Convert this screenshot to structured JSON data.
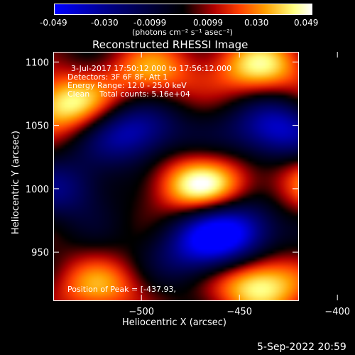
{
  "colorbar": {
    "tick_labels": [
      "-0.049",
      "-0.030",
      "-0.0099",
      "0.0099",
      "0.030",
      "0.049"
    ],
    "unit_label": "(photons cm⁻² s⁻¹ asec⁻²)",
    "colors": [
      "#0000ff",
      "#000080",
      "#000000",
      "#b00000",
      "#ff4000",
      "#ffa000",
      "#ffff80",
      "#ffffff"
    ]
  },
  "chart_data": {
    "type": "heatmap",
    "title": "Reconstructed RHESSI Image",
    "xlabel": "Heliocentric X (arcsec)",
    "ylabel": "Heliocentric Y (arcsec)",
    "xlim": [
      -545,
      -420
    ],
    "ylim": [
      912,
      1108
    ],
    "x_ticks": [
      -500,
      -450,
      -400
    ],
    "x_tick_labels": [
      "−500",
      "−450",
      "−400"
    ],
    "y_ticks": [
      950,
      1000,
      1050,
      1100
    ],
    "y_tick_labels": [
      "950",
      "1000",
      "1050",
      "1100"
    ],
    "value_range": [
      -0.049,
      0.049
    ],
    "sources": [
      {
        "x": -470,
        "y": 1002,
        "value": 0.049
      },
      {
        "x": -538,
        "y": 1066,
        "value": 0.045
      },
      {
        "x": -440,
        "y": 925,
        "value": 0.049
      },
      {
        "x": -522,
        "y": 922,
        "value": 0.03
      },
      {
        "x": -440,
        "y": 1096,
        "value": 0.04
      },
      {
        "x": -495,
        "y": 1092,
        "value": 0.03
      },
      {
        "x": -410,
        "y": 1005,
        "value": 0.03
      },
      {
        "x": -398,
        "y": 1062,
        "value": 0.02
      },
      {
        "x": -505,
        "y": 1045,
        "value": -0.04
      },
      {
        "x": -430,
        "y": 1047,
        "value": -0.045
      },
      {
        "x": -455,
        "y": 968,
        "value": -0.049
      },
      {
        "x": -470,
        "y": 950,
        "value": -0.03
      },
      {
        "x": -540,
        "y": 1000,
        "value": -0.025
      }
    ],
    "annotations": [
      "3-Jul-2017 17:50:12.000 to 17:56:12.000",
      "Detectors: 3F 6F 8F, Att 1",
      "Energy Range: 12.0 - 25.0 keV",
      "Clean    Total counts: 5.16e+04",
      "Position of Peak = [-437.93,"
    ]
  },
  "footer_timestamp": "5-Sep-2022 20:59"
}
